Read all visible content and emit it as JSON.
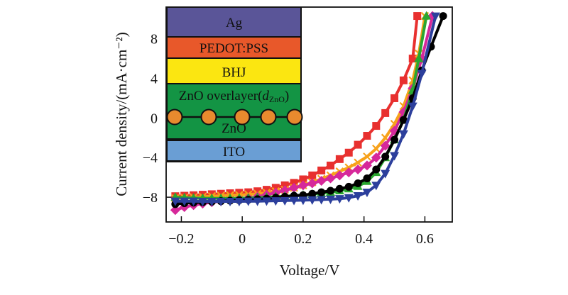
{
  "chart_data": {
    "type": "line",
    "title": "",
    "xlabel": "Voltage/V",
    "ylabel": "Current density/(mA·cm⁻²)",
    "xlim": [
      -0.25,
      0.69
    ],
    "ylim": [
      -10.5,
      11.2
    ],
    "xticks": [
      -0.2,
      0,
      0.2,
      0.4,
      0.6
    ],
    "xtick_labels": [
      "−0.2",
      "0",
      "0.2",
      "0.4",
      "0.6"
    ],
    "yticks": [
      -8,
      -4,
      0,
      4,
      8
    ],
    "ytick_labels": [
      "−8",
      "−4",
      "0",
      "4",
      "8"
    ],
    "grid": false,
    "legend": "none",
    "series": [
      {
        "name": "red-square",
        "color": "#e8302f",
        "marker": "square",
        "x": [
          -0.22,
          -0.19,
          -0.16,
          -0.13,
          -0.1,
          -0.07,
          -0.04,
          -0.01,
          0.02,
          0.05,
          0.08,
          0.11,
          0.14,
          0.17,
          0.2,
          0.23,
          0.26,
          0.29,
          0.32,
          0.35,
          0.38,
          0.41,
          0.44,
          0.47,
          0.5,
          0.53,
          0.56,
          0.575
        ],
        "y": [
          -7.9,
          -7.85,
          -7.8,
          -7.75,
          -7.7,
          -7.65,
          -7.6,
          -7.55,
          -7.5,
          -7.4,
          -7.25,
          -7.05,
          -6.8,
          -6.55,
          -6.2,
          -5.8,
          -5.3,
          -4.8,
          -4.15,
          -3.5,
          -2.7,
          -1.8,
          -0.8,
          0.5,
          2.0,
          3.8,
          6.0,
          10.3
        ]
      },
      {
        "name": "orange-cross",
        "color": "#f7a21b",
        "marker": "cross",
        "x": [
          -0.22,
          -0.19,
          -0.16,
          -0.13,
          -0.1,
          -0.07,
          -0.04,
          -0.01,
          0.02,
          0.05,
          0.08,
          0.11,
          0.14,
          0.17,
          0.2,
          0.23,
          0.26,
          0.29,
          0.32,
          0.35,
          0.38,
          0.41,
          0.44,
          0.47,
          0.5,
          0.53,
          0.56,
          0.58,
          0.6
        ],
        "y": [
          -8.1,
          -8.05,
          -8.0,
          -7.95,
          -7.9,
          -7.85,
          -7.8,
          -7.78,
          -7.72,
          -7.65,
          -7.55,
          -7.4,
          -7.25,
          -7.05,
          -6.8,
          -6.5,
          -6.15,
          -5.8,
          -5.4,
          -5.0,
          -4.5,
          -3.9,
          -3.1,
          -2.0,
          -0.6,
          1.2,
          3.8,
          6.5,
          10.3
        ]
      },
      {
        "name": "magenta-diamond",
        "color": "#d6289a",
        "marker": "diamond",
        "x": [
          -0.22,
          -0.19,
          -0.16,
          -0.13,
          -0.1,
          -0.07,
          -0.04,
          -0.01,
          0.02,
          0.05,
          0.08,
          0.11,
          0.14,
          0.17,
          0.2,
          0.23,
          0.26,
          0.29,
          0.32,
          0.35,
          0.38,
          0.41,
          0.44,
          0.47,
          0.5,
          0.53,
          0.56,
          0.59,
          0.625
        ],
        "y": [
          -9.3,
          -9.0,
          -8.8,
          -8.65,
          -8.5,
          -8.4,
          -8.3,
          -8.2,
          -8.1,
          -7.95,
          -7.75,
          -7.55,
          -7.3,
          -7.05,
          -6.8,
          -6.6,
          -6.35,
          -6.1,
          -5.8,
          -5.5,
          -5.2,
          -4.8,
          -4.0,
          -2.8,
          -1.3,
          0.6,
          3.0,
          6.0,
          10.3
        ]
      },
      {
        "name": "green-triangle-up",
        "color": "#2aa630",
        "marker": "triangle-up",
        "x": [
          -0.22,
          -0.19,
          -0.16,
          -0.13,
          -0.1,
          -0.07,
          -0.04,
          -0.01,
          0.02,
          0.05,
          0.08,
          0.11,
          0.14,
          0.17,
          0.2,
          0.23,
          0.26,
          0.29,
          0.32,
          0.35,
          0.38,
          0.41,
          0.44,
          0.47,
          0.5,
          0.53,
          0.56,
          0.58,
          0.605
        ],
        "y": [
          -8.0,
          -8.05,
          -8.08,
          -8.1,
          -8.12,
          -8.12,
          -8.12,
          -8.1,
          -8.08,
          -8.05,
          -8.0,
          -7.95,
          -7.9,
          -7.85,
          -7.8,
          -7.7,
          -7.6,
          -7.5,
          -7.35,
          -7.15,
          -6.9,
          -6.4,
          -5.5,
          -4.0,
          -2.2,
          -0.2,
          2.8,
          6.0,
          10.3
        ]
      },
      {
        "name": "black-circle",
        "color": "#000000",
        "marker": "circle",
        "x": [
          -0.22,
          -0.19,
          -0.16,
          -0.13,
          -0.1,
          -0.07,
          -0.04,
          -0.01,
          0.02,
          0.05,
          0.08,
          0.11,
          0.14,
          0.17,
          0.2,
          0.23,
          0.26,
          0.29,
          0.32,
          0.35,
          0.38,
          0.41,
          0.44,
          0.47,
          0.5,
          0.53,
          0.56,
          0.59,
          0.62,
          0.66
        ],
        "y": [
          -8.7,
          -8.6,
          -8.55,
          -8.5,
          -8.45,
          -8.4,
          -8.35,
          -8.3,
          -8.25,
          -8.2,
          -8.15,
          -8.05,
          -7.95,
          -7.85,
          -7.8,
          -7.65,
          -7.5,
          -7.35,
          -7.15,
          -6.95,
          -6.6,
          -6.1,
          -5.2,
          -3.9,
          -2.2,
          -0.2,
          2.0,
          4.8,
          7.2,
          10.3
        ]
      },
      {
        "name": "blue-triangle-down",
        "color": "#2c3f9c",
        "marker": "triangle-down",
        "x": [
          -0.22,
          -0.19,
          -0.16,
          -0.13,
          -0.1,
          -0.07,
          -0.04,
          -0.01,
          0.02,
          0.05,
          0.08,
          0.11,
          0.14,
          0.17,
          0.2,
          0.23,
          0.26,
          0.29,
          0.32,
          0.35,
          0.38,
          0.41,
          0.44,
          0.47,
          0.5,
          0.53,
          0.56,
          0.59,
          0.635
        ],
        "y": [
          -8.4,
          -8.4,
          -8.4,
          -8.42,
          -8.42,
          -8.42,
          -8.42,
          -8.42,
          -8.4,
          -8.4,
          -8.38,
          -8.36,
          -8.34,
          -8.32,
          -8.3,
          -8.27,
          -8.24,
          -8.2,
          -8.15,
          -8.05,
          -7.85,
          -7.5,
          -6.8,
          -5.6,
          -3.8,
          -1.6,
          1.2,
          4.5,
          10.3
        ]
      }
    ]
  },
  "inset": {
    "name": "device-structure",
    "layers": [
      {
        "label": "Ag",
        "color": "#5a5598"
      },
      {
        "label": "PEDOT:PSS",
        "color": "#e8582a"
      },
      {
        "label": "BHJ",
        "color": "#fbe611"
      },
      {
        "label": "ZnO overlayer(",
        "label_italic": "d",
        "label_sub": "ZnO",
        "label_close": ")",
        "color": "#139444"
      },
      {
        "label": "ZnO",
        "color": "#139444",
        "nanoparticle_color": "#e88a2e",
        "nanoparticle_count": 5
      },
      {
        "label": "ITO",
        "color": "#6a9ed4"
      }
    ]
  }
}
